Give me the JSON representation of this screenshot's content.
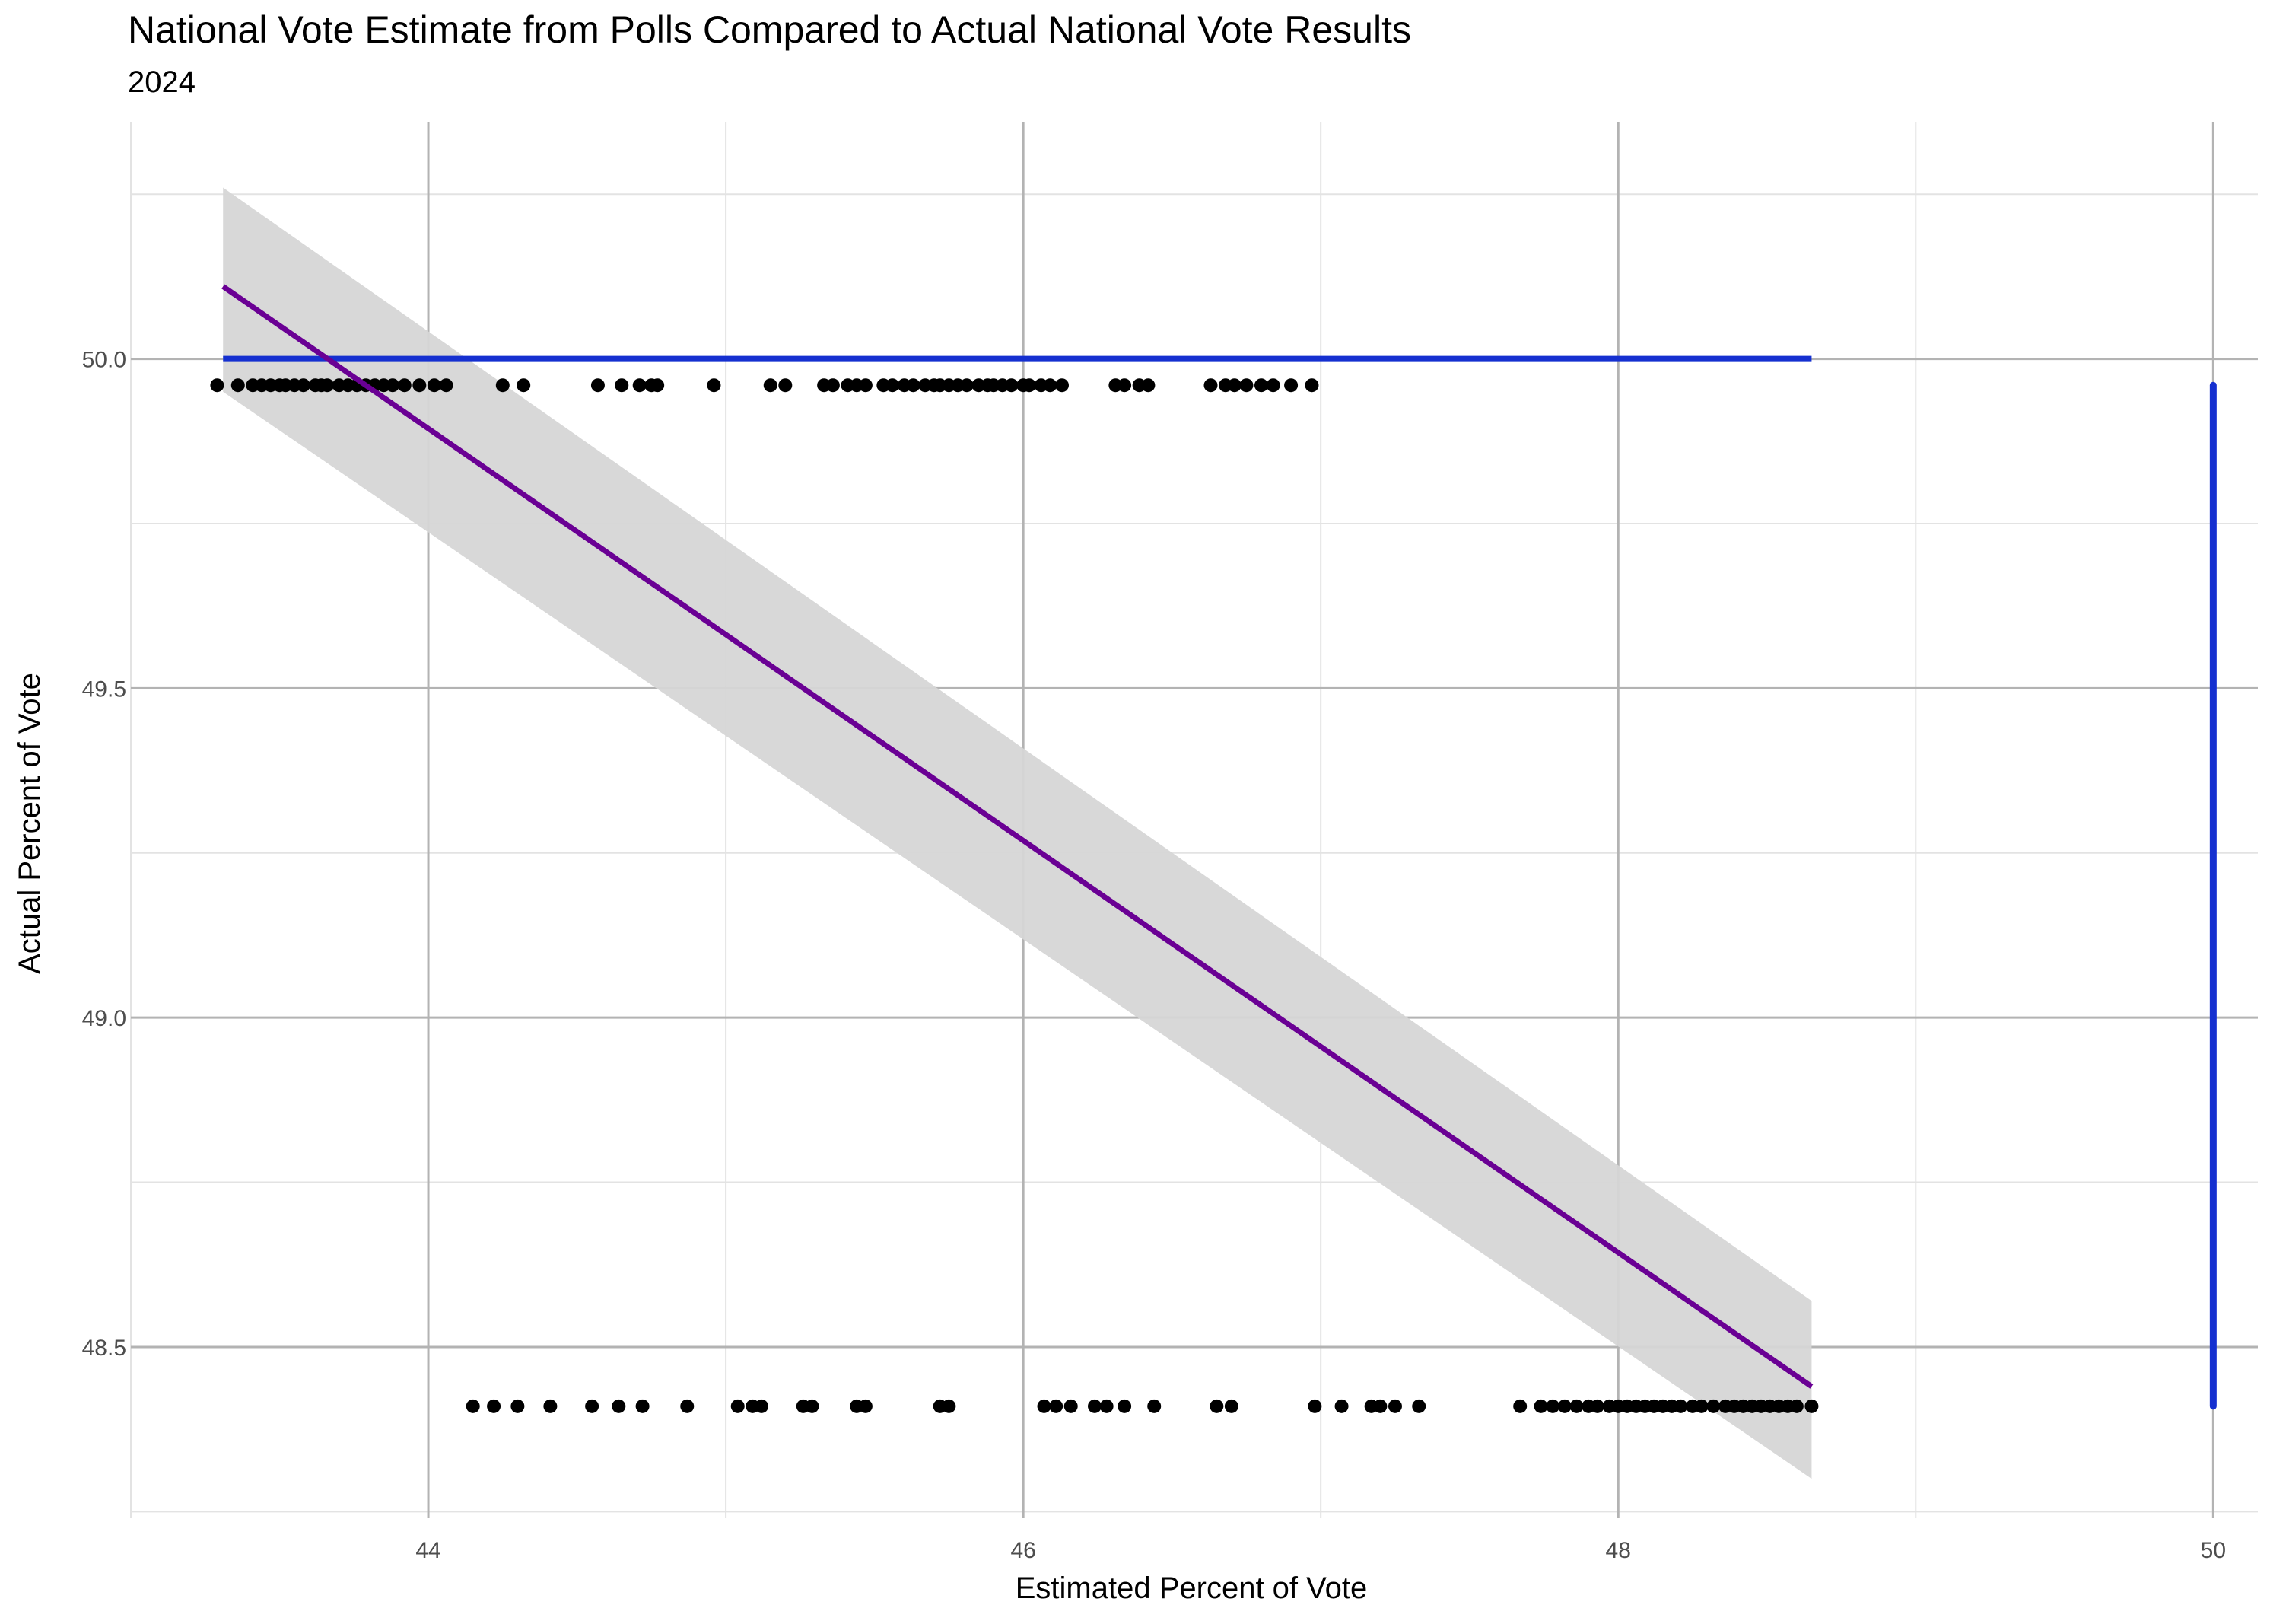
{
  "chart_data": {
    "type": "scatter",
    "title": "National Vote Estimate from Polls Compared to Actual National Vote Results",
    "subtitle": "2024",
    "xlabel": "Estimated Percent of Vote",
    "ylabel": "Actual Percent of Vote",
    "xlim": [
      43.0,
      50.15
    ],
    "ylim": [
      48.24,
      50.36
    ],
    "x_ticks": [
      44,
      46,
      48,
      50
    ],
    "x_tick_labels": [
      "44",
      "46",
      "48",
      "50"
    ],
    "y_ticks": [
      48.5,
      49.0,
      49.5,
      50.0
    ],
    "y_tick_labels": [
      "48.5",
      "49.0",
      "49.5",
      "50.0"
    ],
    "grid": true,
    "points_upper": {
      "y": 49.96,
      "x": [
        43.29,
        43.36,
        43.41,
        43.44,
        43.47,
        43.5,
        43.52,
        43.55,
        43.58,
        43.62,
        43.64,
        43.66,
        43.7,
        43.73,
        43.76,
        43.79,
        43.82,
        43.85,
        43.88,
        43.92,
        43.97,
        44.02,
        44.06,
        44.25,
        44.32,
        44.57,
        44.65,
        44.71,
        44.75,
        44.77,
        44.96,
        45.15,
        45.2,
        45.33,
        45.36,
        45.41,
        45.44,
        45.47,
        45.53,
        45.56,
        45.6,
        45.63,
        45.67,
        45.7,
        45.72,
        45.75,
        45.78,
        45.81,
        45.85,
        45.88,
        45.9,
        45.93,
        45.96,
        46.0,
        46.02,
        46.06,
        46.09,
        46.13,
        46.31,
        46.34,
        46.39,
        46.42,
        46.63,
        46.68,
        46.71,
        46.75,
        46.8,
        46.84,
        46.9,
        46.97
      ]
    },
    "points_lower": {
      "y": 48.41,
      "x": [
        44.15,
        44.22,
        44.3,
        44.41,
        44.55,
        44.64,
        44.72,
        44.87,
        45.04,
        45.09,
        45.12,
        45.26,
        45.29,
        45.44,
        45.47,
        45.72,
        45.75,
        46.07,
        46.11,
        46.16,
        46.24,
        46.28,
        46.34,
        46.44,
        46.65,
        46.7,
        46.98,
        47.07,
        47.17,
        47.2,
        47.25,
        47.33,
        47.67,
        47.74,
        47.78,
        47.82,
        47.86,
        47.9,
        47.93,
        47.97,
        48.0,
        48.03,
        48.06,
        48.09,
        48.12,
        48.15,
        48.18,
        48.21,
        48.25,
        48.28,
        48.32,
        48.36,
        48.39,
        48.42,
        48.45,
        48.48,
        48.51,
        48.54,
        48.57,
        48.6,
        48.65
      ]
    },
    "regression_line": {
      "x": [
        43.31,
        48.65
      ],
      "y": [
        50.11,
        48.44
      ]
    },
    "confidence_band": {
      "x": [
        43.31,
        48.65
      ],
      "upper": [
        50.26,
        48.57
      ],
      "lower": [
        49.95,
        48.3
      ]
    },
    "reference_lines": [
      {
        "orientation": "horizontal",
        "y": 50.0,
        "x_from": 43.31,
        "x_to": 48.65,
        "color": "#1530d0"
      },
      {
        "orientation": "vertical",
        "x": 50.0,
        "y_from": 48.41,
        "y_to": 49.96,
        "color": "#1530d0"
      }
    ],
    "colors": {
      "points": "#000000",
      "regression": "#6a0094",
      "band": "#d6d6d6",
      "reference": "#1530d0"
    }
  }
}
